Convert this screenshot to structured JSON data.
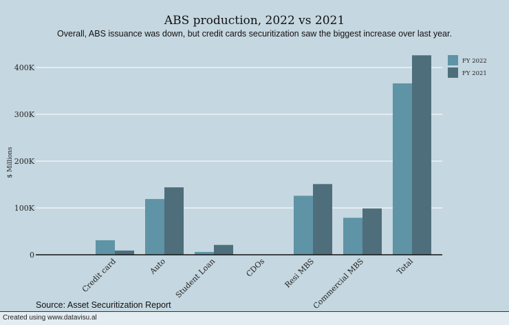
{
  "chart_data": {
    "type": "bar",
    "title": "ABS production, 2022 vs 2021",
    "subtitle": "Overall, ABS issuance was down, but credit cards securitization saw the biggest increase over last year.",
    "xlabel": "",
    "ylabel": "$ Millions",
    "ylim": [
      0,
      420000
    ],
    "yticks": [
      0,
      100000,
      200000,
      300000,
      400000
    ],
    "ytick_labels": [
      "0",
      "100K",
      "200K",
      "300K",
      "400K"
    ],
    "categories": [
      "Credit card",
      "Auto",
      "Student Loan",
      "CDOs",
      "Resi MBS",
      "Commercial MBS",
      "Total"
    ],
    "series": [
      {
        "name": "FY 2022",
        "color": "#5f93a6",
        "values": [
          31000,
          119000,
          6000,
          0,
          126000,
          79000,
          366000
        ]
      },
      {
        "name": "FY 2021",
        "color": "#4e6e7b",
        "values": [
          9000,
          144000,
          21000,
          0,
          151000,
          99000,
          426000
        ]
      }
    ],
    "grid": true,
    "legend": "top-right"
  },
  "source": "Source: Asset Securitization Report",
  "footer": "Created using www.datavisu.al"
}
